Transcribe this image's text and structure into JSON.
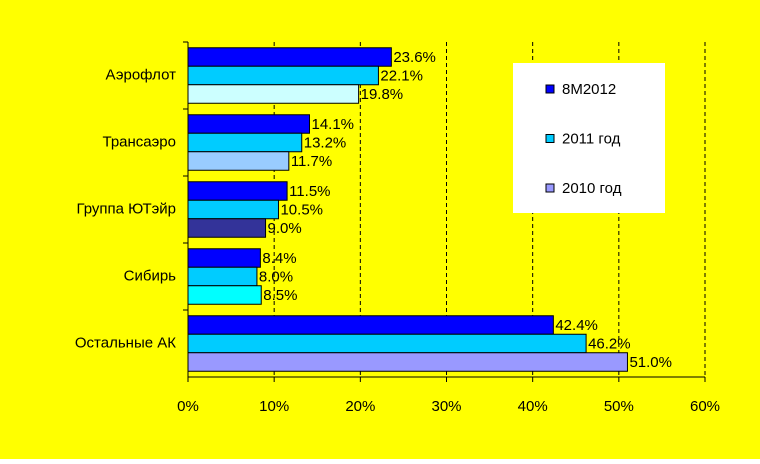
{
  "chart_data": {
    "type": "barh",
    "categories": [
      "Аэрофлот",
      "Трансаэро",
      "Группа ЮТэйр",
      "Сибирь",
      "Остальные АК"
    ],
    "series": [
      {
        "name": "8M2012",
        "color": "#0000ff",
        "values": [
          23.6,
          14.1,
          11.5,
          8.4,
          42.4
        ],
        "value_labels": [
          "23.6%",
          "14.1%",
          "11.5%",
          "8.4%",
          "42.4%"
        ]
      },
      {
        "name": "2011 год",
        "color": "#00ccff",
        "values": [
          22.1,
          13.2,
          10.5,
          8.0,
          46.2
        ],
        "value_labels": [
          "22.1%",
          "13.2%",
          "10.5%",
          "8.0%",
          "46.2%"
        ]
      },
      {
        "name": "2010 год",
        "color": "#9999ff",
        "colors": [
          "#ccffff",
          "#99ccff",
          "#333399",
          "#00ffff",
          "#9999ff"
        ],
        "values": [
          19.8,
          11.7,
          9.0,
          8.5,
          51.0
        ],
        "value_labels": [
          "19.8%",
          "11.7%",
          "9.0%",
          "8.5%",
          "51.0%"
        ]
      }
    ],
    "xlim": [
      0,
      60
    ],
    "xticks": [
      {
        "value": 0,
        "label": "0%"
      },
      {
        "value": 10,
        "label": "10%"
      },
      {
        "value": 20,
        "label": "20%"
      },
      {
        "value": 30,
        "label": "30%"
      },
      {
        "value": 40,
        "label": "40%"
      },
      {
        "value": 50,
        "label": "50%"
      },
      {
        "value": 60,
        "label": "60%"
      }
    ],
    "grid": true,
    "grid_style": "dashed",
    "legend": "upper right",
    "background": "#ffff00"
  }
}
